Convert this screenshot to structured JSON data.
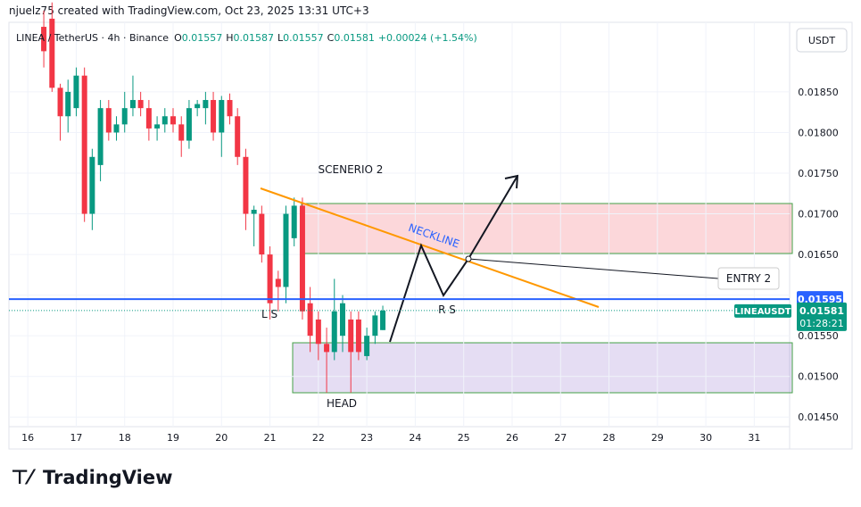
{
  "header": {
    "credit": "njuelz75 created with TradingView.com, Oct 23, 2025 13:31 UTC+3"
  },
  "chart_data": {
    "type": "candlestick",
    "symbol": "LINEA / TetherUS · 4h · Binance",
    "ohlc_legend": [
      {
        "label": "O",
        "value": "0.01557"
      },
      {
        "label": "H",
        "value": "0.01587"
      },
      {
        "label": "L",
        "value": "0.01557"
      },
      {
        "label": "C",
        "value": "0.01581"
      }
    ],
    "change": "+0.00024 (+1.54%)",
    "currency": "USDT",
    "up_color": "#089981",
    "down_color": "#f23645",
    "x": [
      16.33,
      16.5,
      16.67,
      16.83,
      17,
      17.17,
      17.33,
      17.5,
      17.67,
      17.83,
      18,
      18.17,
      18.33,
      18.5,
      18.67,
      18.83,
      19,
      19.17,
      19.33,
      19.5,
      19.67,
      19.83,
      20,
      20.17,
      20.33,
      20.5,
      20.67,
      20.83,
      21,
      21.17,
      21.33,
      21.5,
      21.67,
      21.83,
      22,
      22.17,
      22.33,
      22.5,
      22.67,
      22.83,
      23,
      23.17,
      23.33
    ],
    "open": [
      0.0193,
      0.0194,
      0.01855,
      0.0182,
      0.0183,
      0.0187,
      0.017,
      0.0176,
      0.0183,
      0.018,
      0.0181,
      0.0183,
      0.0184,
      0.0183,
      0.01805,
      0.0181,
      0.0182,
      0.0181,
      0.0179,
      0.0183,
      0.0183,
      0.0184,
      0.018,
      0.0184,
      0.0182,
      0.0177,
      0.017,
      0.017,
      0.0165,
      0.0162,
      0.0161,
      0.0167,
      0.0171,
      0.0159,
      0.0157,
      0.0154,
      0.0153,
      0.0155,
      0.0157,
      0.0157,
      0.01525,
      0.0155,
      0.01557
    ],
    "high": [
      0.0195,
      0.0196,
      0.0186,
      0.01865,
      0.0188,
      0.0188,
      0.0178,
      0.0184,
      0.0184,
      0.0182,
      0.0185,
      0.0187,
      0.0185,
      0.0184,
      0.0182,
      0.0183,
      0.0183,
      0.0182,
      0.0184,
      0.0184,
      0.0185,
      0.0185,
      0.01845,
      0.01848,
      0.0183,
      0.0178,
      0.0171,
      0.0171,
      0.0166,
      0.0163,
      0.0171,
      0.0172,
      0.0172,
      0.0161,
      0.0158,
      0.0156,
      0.0162,
      0.016,
      0.0158,
      0.0158,
      0.0156,
      0.0158,
      0.01587
    ],
    "low": [
      0.0188,
      0.0185,
      0.0179,
      0.018,
      0.0182,
      0.0169,
      0.0168,
      0.0174,
      0.0179,
      0.0179,
      0.018,
      0.0182,
      0.0182,
      0.0179,
      0.0179,
      0.018,
      0.018,
      0.0177,
      0.0178,
      0.0182,
      0.0181,
      0.0179,
      0.0177,
      0.0181,
      0.0176,
      0.0168,
      0.0166,
      0.0164,
      0.0157,
      0.0158,
      0.0159,
      0.0166,
      0.0157,
      0.0153,
      0.0152,
      0.0148,
      0.0152,
      0.0153,
      0.0148,
      0.0152,
      0.0152,
      0.0154,
      0.01557
    ],
    "close": [
      0.019,
      0.01855,
      0.0182,
      0.0185,
      0.0187,
      0.017,
      0.0177,
      0.0183,
      0.018,
      0.0181,
      0.0183,
      0.0184,
      0.0183,
      0.01805,
      0.0181,
      0.0182,
      0.0181,
      0.0179,
      0.0183,
      0.01835,
      0.0184,
      0.018,
      0.0184,
      0.0182,
      0.0177,
      0.017,
      0.01705,
      0.0165,
      0.0159,
      0.0161,
      0.017,
      0.0171,
      0.0158,
      0.0155,
      0.0154,
      0.0153,
      0.0158,
      0.0159,
      0.0153,
      0.0153,
      0.0155,
      0.01575,
      0.01581
    ],
    "xlim": [
      15.61,
      31.73
    ],
    "xticks": [
      16,
      17,
      18,
      19,
      20,
      21,
      22,
      23,
      24,
      25,
      26,
      27,
      28,
      29,
      30,
      31
    ],
    "ylim": [
      0.01436,
      0.01963
    ],
    "yticks": [
      {
        "value": 0.0145,
        "label": "0.01450"
      },
      {
        "value": 0.015,
        "label": "0.01500"
      },
      {
        "value": 0.0155,
        "label": "0.01550"
      },
      {
        "value": 0.016,
        "label": "0.01600"
      },
      {
        "value": 0.0165,
        "label": "0.01650"
      },
      {
        "value": 0.017,
        "label": "0.01700"
      },
      {
        "value": 0.0175,
        "label": "0.01750"
      },
      {
        "value": 0.018,
        "label": "0.01800"
      },
      {
        "value": 0.0185,
        "label": "0.01850"
      }
    ],
    "level_line": {
      "value": 0.01595,
      "color": "#2962ff"
    },
    "last_price": {
      "name": "LINEAUSDT",
      "value": 0.01581,
      "countdown": "01:28:21"
    },
    "annotations": {
      "scenario": "SCENERIO 2",
      "neckline": "NECKLINE",
      "left_shoulder": "L S",
      "right_shoulder": "R S",
      "head": "HEAD",
      "entry": "ENTRY 2"
    }
  },
  "footer": {
    "brand": "TradingView"
  }
}
